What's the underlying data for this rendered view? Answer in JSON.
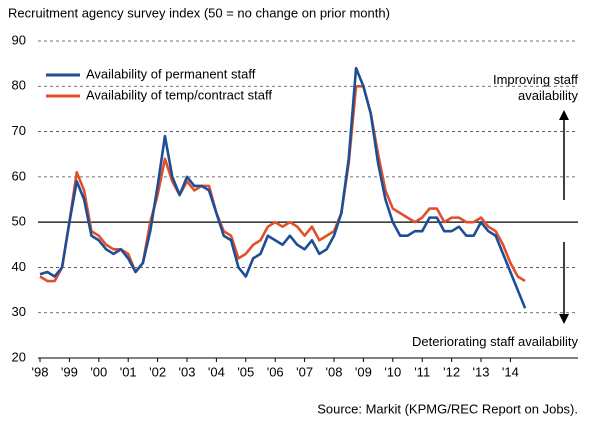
{
  "chart_data": {
    "type": "line",
    "title": "Recruitment agency survey index (50 = no change on prior month)",
    "source": "Source: Markit (KPMG/REC Report on Jobs).",
    "annotation_up": "Improving staff availability",
    "annotation_down": "Deteriorating staff availability",
    "reference_line": 50,
    "categories": [
      "'98",
      null,
      null,
      null,
      "'99",
      null,
      null,
      null,
      "'00",
      null,
      null,
      null,
      "'01",
      null,
      null,
      null,
      "'02",
      null,
      null,
      null,
      "'03",
      null,
      null,
      null,
      "'04",
      null,
      null,
      null,
      "'05",
      null,
      null,
      null,
      "'06",
      null,
      null,
      null,
      "'07",
      null,
      null,
      null,
      "'08",
      null,
      null,
      null,
      "'09",
      null,
      null,
      null,
      "'10",
      null,
      null,
      null,
      "'11",
      null,
      null,
      null,
      "'12",
      null,
      null,
      null,
      "'13",
      null,
      null,
      null,
      "'14",
      null,
      null
    ],
    "series": [
      {
        "name": "Availability of permanent staff",
        "color": "#1f4e96",
        "values": [
          38.5,
          39,
          38,
          40,
          50,
          59,
          55,
          47,
          46,
          44,
          43,
          44,
          42,
          39,
          41,
          48,
          58,
          69,
          60,
          56,
          60,
          58,
          58,
          57,
          52,
          47,
          46,
          40,
          38,
          42,
          43,
          47,
          46,
          45,
          47,
          45,
          44,
          46,
          43,
          44,
          47,
          52,
          64,
          84,
          80,
          74,
          63,
          55,
          50,
          47,
          47,
          48,
          48,
          51,
          51,
          48,
          48,
          49,
          47,
          47,
          50,
          48,
          47,
          43,
          39,
          35,
          31
        ]
      },
      {
        "name": "Availability of temp/contract staff",
        "color": "#e0502a",
        "values": [
          38,
          37,
          37,
          40,
          50,
          61,
          57,
          48,
          47,
          45,
          44,
          44,
          43,
          39,
          41,
          50,
          56,
          64,
          59,
          56,
          59,
          57,
          58,
          58,
          52,
          48,
          47,
          42,
          43,
          45,
          46,
          49,
          50,
          49,
          50,
          49,
          47,
          49,
          46,
          47,
          48,
          52,
          63,
          80,
          80,
          74,
          65,
          57,
          53,
          52,
          51,
          50,
          51,
          53,
          53,
          50,
          51,
          51,
          50,
          50,
          51,
          49,
          48,
          45,
          41,
          38,
          37
        ]
      }
    ],
    "ylim": [
      20,
      90
    ],
    "yticks": [
      20,
      30,
      40,
      50,
      60,
      70,
      80,
      90
    ],
    "grid": true
  }
}
